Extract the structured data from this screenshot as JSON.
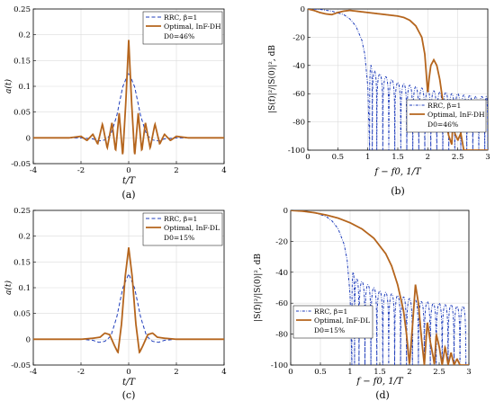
{
  "chart_data": [
    {
      "id": "a",
      "type": "line",
      "panel_label": "(a)",
      "xlabel": "t/T",
      "ylabel": "a(t)",
      "xlim": [
        -4,
        4
      ],
      "ylim": [
        -0.05,
        0.25
      ],
      "xticks": [
        -4,
        -2,
        0,
        2,
        4
      ],
      "yticks": [
        -0.05,
        0,
        0.05,
        0.1,
        0.15,
        0.2,
        0.25
      ],
      "grid": true,
      "legend_position": "top-right",
      "legend": [
        "RRC, β=1",
        "Optimal, InF-DH",
        "D0=46%"
      ],
      "series": [
        {
          "name": "RRC, β=1",
          "color": "#1f3dbb",
          "style": "dashed",
          "x": [
            -4,
            -2,
            -1.5,
            -1.25,
            -1,
            -0.75,
            -0.5,
            -0.25,
            0,
            0.25,
            0.5,
            0.75,
            1,
            1.25,
            1.5,
            2,
            4
          ],
          "y": [
            0,
            0,
            -0.002,
            -0.006,
            -0.004,
            0.006,
            0.043,
            0.099,
            0.127,
            0.099,
            0.043,
            0.006,
            -0.004,
            -0.006,
            -0.002,
            0,
            0
          ]
        },
        {
          "name": "Optimal, InF-DH",
          "color": "#b5651d",
          "style": "solid",
          "x": [
            -4,
            -2.5,
            -2,
            -1.75,
            -1.5,
            -1.3,
            -1.1,
            -0.9,
            -0.7,
            -0.55,
            -0.4,
            -0.25,
            -0.12,
            0,
            0.12,
            0.25,
            0.4,
            0.55,
            0.7,
            0.9,
            1.1,
            1.3,
            1.5,
            1.75,
            2,
            2.5,
            4
          ],
          "y": [
            0,
            0,
            0.003,
            -0.005,
            0.007,
            -0.012,
            0.027,
            -0.02,
            0.03,
            -0.026,
            0.048,
            -0.035,
            0.07,
            0.19,
            0.07,
            -0.035,
            0.048,
            -0.026,
            0.03,
            -0.02,
            0.027,
            -0.012,
            0.007,
            -0.005,
            0.003,
            0,
            0
          ]
        }
      ]
    },
    {
      "id": "b",
      "type": "line",
      "panel_label": "(b)",
      "xlabel": "f − f0, 1/T",
      "ylabel": "|S(f)|²/|S(0)|², dB",
      "xlim": [
        0,
        3
      ],
      "ylim": [
        -100,
        0
      ],
      "xticks": [
        0,
        0.5,
        1,
        1.5,
        2,
        2.5,
        3
      ],
      "yticks": [
        0,
        -20,
        -40,
        -60,
        -80,
        -100
      ],
      "grid": true,
      "legend_position": "bottom-right",
      "legend": [
        "RRC, β=1",
        "Optimal, InF-DH",
        "D0=46%"
      ],
      "series": [
        {
          "name": "RRC, β=1",
          "color": "#1f3dbb",
          "style": "dashdot",
          "main_x": [
            0,
            0.2,
            0.4,
            0.6,
            0.7,
            0.8,
            0.9,
            0.95,
            1.0,
            1.03
          ],
          "main_y": [
            0,
            -0.3,
            -1.5,
            -4,
            -7,
            -12,
            -22,
            -32,
            -55,
            -100
          ],
          "lobe_peaks_x": [
            1.05,
            1.1,
            1.2,
            1.3,
            1.4,
            1.5,
            1.6,
            1.7,
            1.8,
            1.9,
            2.0,
            2.1,
            2.2,
            2.3,
            2.4,
            2.5,
            2.6,
            2.7,
            2.8,
            2.9,
            3.0
          ],
          "lobe_peaks_y": [
            -40,
            -44,
            -46,
            -48,
            -50,
            -52,
            -53,
            -54,
            -55,
            -56,
            -57,
            -58,
            -59,
            -59,
            -60,
            -60,
            -61,
            -61,
            -62,
            -62,
            -62
          ]
        },
        {
          "name": "Optimal, InF-DH",
          "color": "#b5651d",
          "style": "solid",
          "x": [
            0,
            0.1,
            0.2,
            0.3,
            0.4,
            0.5,
            0.6,
            0.7,
            0.8,
            0.9,
            1.0,
            1.1,
            1.2,
            1.3,
            1.4,
            1.5,
            1.6,
            1.7,
            1.8,
            1.9,
            1.95,
            2.0,
            2.02,
            2.05,
            2.1,
            2.15,
            2.2,
            2.25,
            2.3,
            2.35,
            2.4,
            2.42,
            2.45,
            2.5,
            2.55,
            2.6,
            2.7,
            2.8,
            3.0
          ],
          "y": [
            0,
            -1,
            -2.5,
            -3.5,
            -4,
            -2.5,
            -1.5,
            -1,
            -1.5,
            -2,
            -2.5,
            -3,
            -3.5,
            -4,
            -4.5,
            -5,
            -6,
            -8,
            -12,
            -20,
            -32,
            -60,
            -50,
            -40,
            -36,
            -40,
            -50,
            -65,
            -80,
            -90,
            -96,
            -78,
            -88,
            -93,
            -88,
            -100,
            -100,
            -100,
            -100
          ]
        }
      ]
    },
    {
      "id": "c",
      "type": "line",
      "panel_label": "(c)",
      "xlabel": "t/T",
      "ylabel": "a(t)",
      "xlim": [
        -4,
        4
      ],
      "ylim": [
        -0.05,
        0.25
      ],
      "xticks": [
        -4,
        -2,
        0,
        2,
        4
      ],
      "yticks": [
        -0.05,
        0,
        0.05,
        0.1,
        0.15,
        0.2,
        0.25
      ],
      "grid": true,
      "legend_position": "top-right",
      "legend": [
        "RRC, β=1",
        "Optimal, InF-DL",
        "D0=15%"
      ],
      "series": [
        {
          "name": "RRC, β=1",
          "color": "#1f3dbb",
          "style": "dashed",
          "x": [
            -4,
            -2,
            -1.5,
            -1.25,
            -1,
            -0.75,
            -0.5,
            -0.25,
            0,
            0.25,
            0.5,
            0.75,
            1,
            1.25,
            1.5,
            2,
            4
          ],
          "y": [
            0,
            0,
            -0.002,
            -0.006,
            -0.004,
            0.006,
            0.043,
            0.099,
            0.127,
            0.099,
            0.043,
            0.006,
            -0.004,
            -0.006,
            -0.002,
            0,
            0
          ]
        },
        {
          "name": "Optimal, InF-DL",
          "color": "#b5651d",
          "style": "solid",
          "x": [
            -4,
            -2.5,
            -2,
            -1.5,
            -1.2,
            -1.0,
            -0.8,
            -0.6,
            -0.45,
            -0.3,
            -0.15,
            0,
            0.15,
            0.3,
            0.45,
            0.6,
            0.8,
            1.0,
            1.2,
            1.5,
            2,
            2.5,
            4
          ],
          "y": [
            0,
            0,
            0,
            0.002,
            0.004,
            0.012,
            0.009,
            -0.012,
            -0.026,
            0.03,
            0.12,
            0.178,
            0.12,
            0.03,
            -0.026,
            -0.012,
            0.009,
            0.012,
            0.004,
            0.002,
            0,
            0,
            0
          ]
        }
      ]
    },
    {
      "id": "d",
      "type": "line",
      "panel_label": "(d)",
      "xlabel": "f − f0, 1/T",
      "ylabel": "|S(f)|²/|S(0)|², dB",
      "xlim": [
        0,
        3
      ],
      "ylim": [
        -100,
        0
      ],
      "xticks": [
        0,
        0.5,
        1,
        1.5,
        2,
        2.5,
        3
      ],
      "yticks": [
        0,
        -20,
        -40,
        -60,
        -80,
        -100
      ],
      "grid": true,
      "legend_position": "bottom-left",
      "legend": [
        "RRC, β=1",
        "Optimal, InF-DL",
        "D0=15%"
      ],
      "series": [
        {
          "name": "RRC, β=1",
          "color": "#1f3dbb",
          "style": "dashdot",
          "main_x": [
            0,
            0.2,
            0.4,
            0.6,
            0.7,
            0.8,
            0.9,
            0.95,
            1.0,
            1.03
          ],
          "main_y": [
            0,
            -0.3,
            -1.5,
            -4,
            -7,
            -12,
            -22,
            -32,
            -55,
            -100
          ],
          "lobe_peaks_x": [
            1.05,
            1.1,
            1.2,
            1.3,
            1.4,
            1.5,
            1.6,
            1.7,
            1.8,
            1.9,
            2.0,
            2.1,
            2.2,
            2.3,
            2.4,
            2.5,
            2.6,
            2.7,
            2.8,
            2.9
          ],
          "lobe_peaks_y": [
            -40,
            -44,
            -46,
            -48,
            -50,
            -52,
            -53,
            -54,
            -55,
            -56,
            -57,
            -58,
            -59,
            -59,
            -60,
            -60,
            -61,
            -61,
            -62,
            -62
          ]
        },
        {
          "name": "Optimal, InF-DL",
          "color": "#b5651d",
          "style": "solid",
          "x": [
            0,
            0.2,
            0.4,
            0.6,
            0.8,
            1.0,
            1.2,
            1.4,
            1.6,
            1.7,
            1.8,
            1.9,
            1.95,
            2.0,
            2.02,
            2.05,
            2.1,
            2.15,
            2.2,
            2.25,
            2.3,
            2.35,
            2.4,
            2.42,
            2.45,
            2.5,
            2.55,
            2.6,
            2.65,
            2.7,
            2.75,
            2.8,
            2.85,
            2.9,
            3.0
          ],
          "y": [
            0,
            -0.5,
            -1.5,
            -3,
            -5,
            -8,
            -12,
            -18,
            -28,
            -36,
            -48,
            -65,
            -80,
            -100,
            -90,
            -75,
            -48,
            -60,
            -82,
            -100,
            -72,
            -85,
            -95,
            -100,
            -80,
            -88,
            -100,
            -88,
            -100,
            -92,
            -100,
            -96,
            -100,
            -100,
            -100
          ]
        }
      ]
    }
  ]
}
